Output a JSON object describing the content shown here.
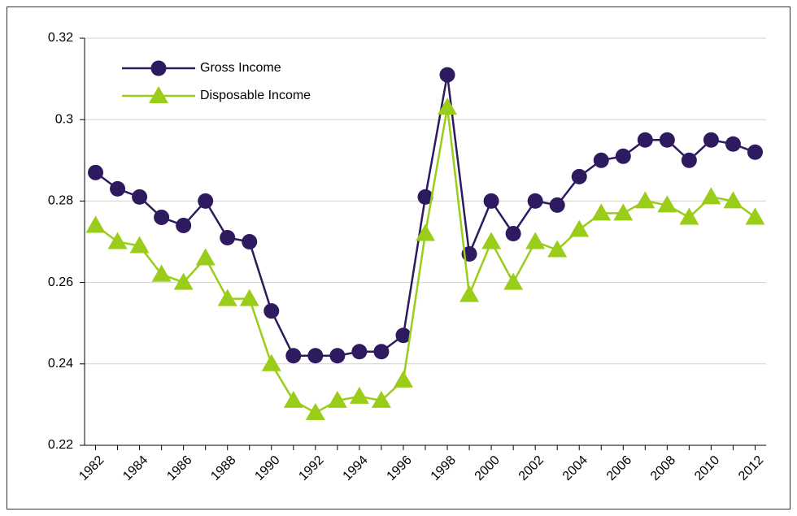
{
  "chart_data": {
    "type": "line",
    "categories": [
      "1982",
      null,
      "1984",
      null,
      "1986",
      null,
      "1988",
      null,
      "1990",
      null,
      "1992",
      null,
      "1994",
      null,
      "1996",
      null,
      "1998",
      null,
      "2000",
      null,
      "2002",
      null,
      "2004",
      null,
      "2006",
      null,
      "2008",
      null,
      "2010",
      null,
      "2012"
    ],
    "series": [
      {
        "name": "Gross Income",
        "color": "#2e1a5f",
        "marker": "circle",
        "values": [
          0.287,
          0.283,
          0.281,
          0.276,
          0.274,
          0.28,
          0.271,
          0.27,
          0.253,
          0.242,
          0.242,
          0.242,
          0.243,
          0.243,
          0.247,
          0.281,
          0.311,
          0.267,
          0.28,
          0.272,
          0.28,
          0.279,
          0.286,
          0.29,
          0.291,
          0.295,
          0.295,
          0.29,
          0.295,
          0.294,
          0.292
        ]
      },
      {
        "name": "Disposable Income",
        "color": "#9acd1a",
        "marker": "triangle",
        "values": [
          0.274,
          0.27,
          0.269,
          0.262,
          0.26,
          0.266,
          0.256,
          0.256,
          0.24,
          0.231,
          0.228,
          0.231,
          0.232,
          0.231,
          0.236,
          0.272,
          0.303,
          0.257,
          0.27,
          0.26,
          0.27,
          0.268,
          0.273,
          0.277,
          0.277,
          0.28,
          0.279,
          0.276,
          0.281,
          0.28,
          0.276
        ]
      }
    ],
    "ylim": [
      0.22,
      0.32
    ],
    "yticks": [
      0.22,
      0.24,
      0.26,
      0.28,
      0.3,
      0.32
    ],
    "grid": true,
    "legend": "upper left"
  }
}
